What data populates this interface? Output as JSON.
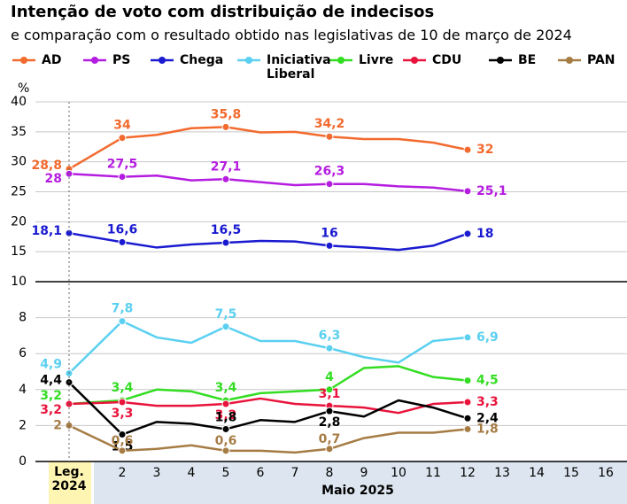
{
  "chart_data": [
    {
      "type": "line",
      "title": "Intenção de voto com distribuição de indecisos",
      "subtitle": "e comparação com o resultado obtido nas legislativas de 10 de março de 2024",
      "y_label": "%",
      "x_label": "Maio 2025",
      "categories": [
        "Leg. 2024",
        2,
        3,
        4,
        5,
        6,
        7,
        8,
        9,
        10,
        11,
        12,
        13,
        14,
        15,
        16
      ],
      "ylim": [
        10,
        40
      ],
      "yticks": [
        10,
        15,
        20,
        25,
        30,
        35,
        40
      ],
      "grid": true,
      "series": [
        {
          "name": "AD",
          "color": "#f26a2e",
          "values": [
            28.8,
            34,
            34.5,
            35.6,
            35.8,
            34.9,
            35,
            34.2,
            33.8,
            33.8,
            33.2,
            32,
            null,
            null,
            null,
            null
          ],
          "value_labels": [
            "28,8",
            "34",
            null,
            null,
            "35,8",
            null,
            null,
            "34,2",
            null,
            null,
            null,
            "32",
            null,
            null,
            null,
            null
          ]
        },
        {
          "name": "PS",
          "color": "#b41de0",
          "values": [
            28,
            27.5,
            27.7,
            26.9,
            27.1,
            26.6,
            26.1,
            26.3,
            26.3,
            25.9,
            25.7,
            25.1,
            null,
            null,
            null,
            null
          ],
          "value_labels": [
            "28",
            "27,5",
            null,
            null,
            "27,1",
            null,
            null,
            "26,3",
            null,
            null,
            null,
            "25,1",
            null,
            null,
            null,
            null
          ]
        },
        {
          "name": "Chega",
          "color": "#1a1ad0",
          "values": [
            18.1,
            16.6,
            15.7,
            16.2,
            16.5,
            16.8,
            16.7,
            16,
            15.7,
            15.3,
            16,
            18,
            null,
            null,
            null,
            null
          ],
          "value_labels": [
            "18,1",
            "16,6",
            null,
            null,
            "16,5",
            null,
            null,
            "16",
            null,
            null,
            null,
            "18",
            null,
            null,
            null,
            null
          ]
        }
      ]
    },
    {
      "type": "line",
      "ylim": [
        0,
        10
      ],
      "yticks": [
        0,
        2,
        4,
        6,
        8
      ],
      "grid": true,
      "series": [
        {
          "name": "Iniciativa Liberal",
          "color": "#5bd0f0",
          "values": [
            4.9,
            7.8,
            6.9,
            6.6,
            7.5,
            6.7,
            6.7,
            6.3,
            5.8,
            5.5,
            6.7,
            6.9,
            null,
            null,
            null,
            null
          ],
          "value_labels": [
            "4,9",
            "7,8",
            null,
            null,
            "7,5",
            null,
            null,
            "6,3",
            null,
            null,
            null,
            "6,9",
            null,
            null,
            null,
            null
          ]
        },
        {
          "name": "Livre",
          "color": "#33dd22",
          "values": [
            3.2,
            3.4,
            4.0,
            3.9,
            3.4,
            3.8,
            3.9,
            4,
            5.2,
            5.3,
            4.7,
            4.5,
            null,
            null,
            null,
            null
          ],
          "value_labels": [
            "3,2",
            "3,4",
            null,
            null,
            "3,4",
            null,
            null,
            "4",
            null,
            null,
            null,
            "4,5",
            null,
            null,
            null,
            null
          ]
        },
        {
          "name": "CDU",
          "color": "#e8143c",
          "values": [
            3.2,
            3.3,
            3.1,
            3.1,
            3.2,
            3.5,
            3.2,
            3.1,
            3.0,
            2.7,
            3.2,
            3.3,
            null,
            null,
            null,
            null
          ],
          "value_labels": [
            "3,2",
            "3,3",
            null,
            null,
            "3,2",
            null,
            null,
            "3,1",
            null,
            null,
            null,
            "3,3",
            null,
            null,
            null,
            null
          ]
        },
        {
          "name": "BE",
          "color": "#000000",
          "values": [
            4.4,
            1.5,
            2.2,
            2.1,
            1.8,
            2.3,
            2.2,
            2.8,
            2.5,
            3.4,
            3.0,
            2.4,
            null,
            null,
            null,
            null
          ],
          "value_labels": [
            "4,4",
            "1,5",
            null,
            null,
            "1,8",
            null,
            null,
            "2,8",
            null,
            null,
            null,
            "2,4",
            null,
            null,
            null,
            null
          ]
        },
        {
          "name": "PAN",
          "color": "#a67c45",
          "values": [
            2,
            0.6,
            0.7,
            0.9,
            0.6,
            0.6,
            0.5,
            0.7,
            1.3,
            1.6,
            1.6,
            1.8,
            null,
            null,
            null,
            null
          ],
          "value_labels": [
            "2",
            "0,6",
            null,
            null,
            "0,6",
            null,
            null,
            "0,7",
            null,
            null,
            null,
            "1,8",
            null,
            null,
            null,
            null
          ]
        }
      ]
    }
  ]
}
